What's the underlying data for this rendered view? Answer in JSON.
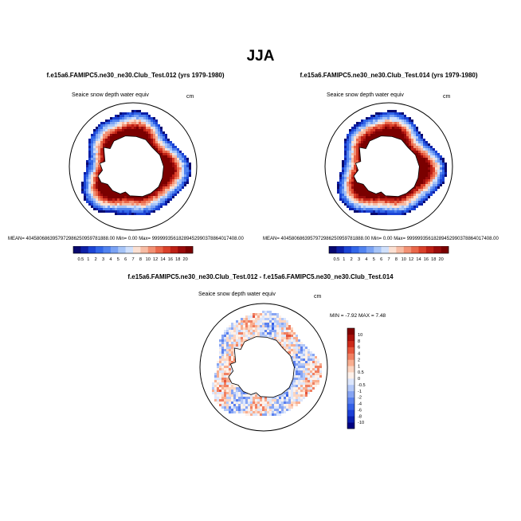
{
  "page": {
    "title": "JJA"
  },
  "chart_data": [
    {
      "type": "heatmap",
      "projection": "south-polar-stereographic",
      "title": "f.e15a6.FAMIPC5.ne30_ne30.Club_Test.012 (yrs 1979-1980)",
      "variable": "Seaice snow depth water equiv",
      "units": "cm",
      "stats": {
        "mean_label": "MEAN=",
        "mean": "40458068639579729862509597818​88.00",
        "min_label": "Min=",
        "min": "0.00",
        "max_label": "Max=",
        "max": "99999935618289452990378864017408.00"
      },
      "colorbar": {
        "orientation": "horizontal",
        "levels": [
          "0.5",
          "1",
          "2",
          "3",
          "4",
          "5",
          "6",
          "7",
          "8",
          "10",
          "12",
          "14",
          "16",
          "18",
          "20"
        ],
        "colors": [
          "#08086e",
          "#0d1fa6",
          "#1c44d4",
          "#3266e8",
          "#5183ef",
          "#7aa2f3",
          "#a6c4f7",
          "#d0e0fb",
          "#fbe0d2",
          "#f7bca4",
          "#f29174",
          "#e9674a",
          "#d9402a",
          "#bd2015",
          "#990b0b",
          "#7a0000"
        ]
      }
    },
    {
      "type": "heatmap",
      "projection": "south-polar-stereographic",
      "title": "f.e15a6.FAMIPC5.ne30_ne30.Club_Test.014 (yrs 1979-1980)",
      "variable": "Seaice snow depth water equiv",
      "units": "cm",
      "stats": {
        "mean_label": "MEAN=",
        "mean": "40458068639579729862509597818​88.00",
        "min_label": "Min=",
        "min": "0.00",
        "max_label": "Max=",
        "max": "99999935618289452990378864017408.00"
      },
      "colorbar": {
        "orientation": "horizontal",
        "levels": [
          "0.5",
          "1",
          "2",
          "3",
          "4",
          "5",
          "6",
          "7",
          "8",
          "10",
          "12",
          "14",
          "16",
          "18",
          "20"
        ],
        "colors": [
          "#08086e",
          "#0d1fa6",
          "#1c44d4",
          "#3266e8",
          "#5183ef",
          "#7aa2f3",
          "#a6c4f7",
          "#d0e0fb",
          "#fbe0d2",
          "#f7bca4",
          "#f29174",
          "#e9674a",
          "#d9402a",
          "#bd2015",
          "#990b0b",
          "#7a0000"
        ]
      }
    },
    {
      "type": "heatmap",
      "projection": "south-polar-stereographic",
      "title": "f.e15a6.FAMIPC5.ne30_ne30.Club_Test.012 - f.e15a6.FAMIPC5.ne30_ne30.Club_Test.014",
      "variable": "Seaice snow depth water equiv",
      "units": "cm",
      "stats": {
        "min_label": "MIN =",
        "min": "-7.92",
        "max_label": "MAX =",
        "max": "7.48"
      },
      "colorbar": {
        "orientation": "vertical",
        "levels": [
          "-10",
          "-8",
          "-6",
          "-4",
          "-2",
          "-1",
          "-0.5",
          "0",
          "0.5",
          "1",
          "2",
          "4",
          "6",
          "8",
          "10"
        ],
        "colors": [
          "#000080",
          "#0a1fb0",
          "#1c3fd6",
          "#3560e6",
          "#5a80ee",
          "#86a4f3",
          "#b3c8f8",
          "#dce6fc",
          "#fdf1ea",
          "#fcd5c1",
          "#f8ae90",
          "#f08062",
          "#e5543a",
          "#cc2a1a",
          "#a8100a",
          "#800000"
        ]
      }
    }
  ]
}
